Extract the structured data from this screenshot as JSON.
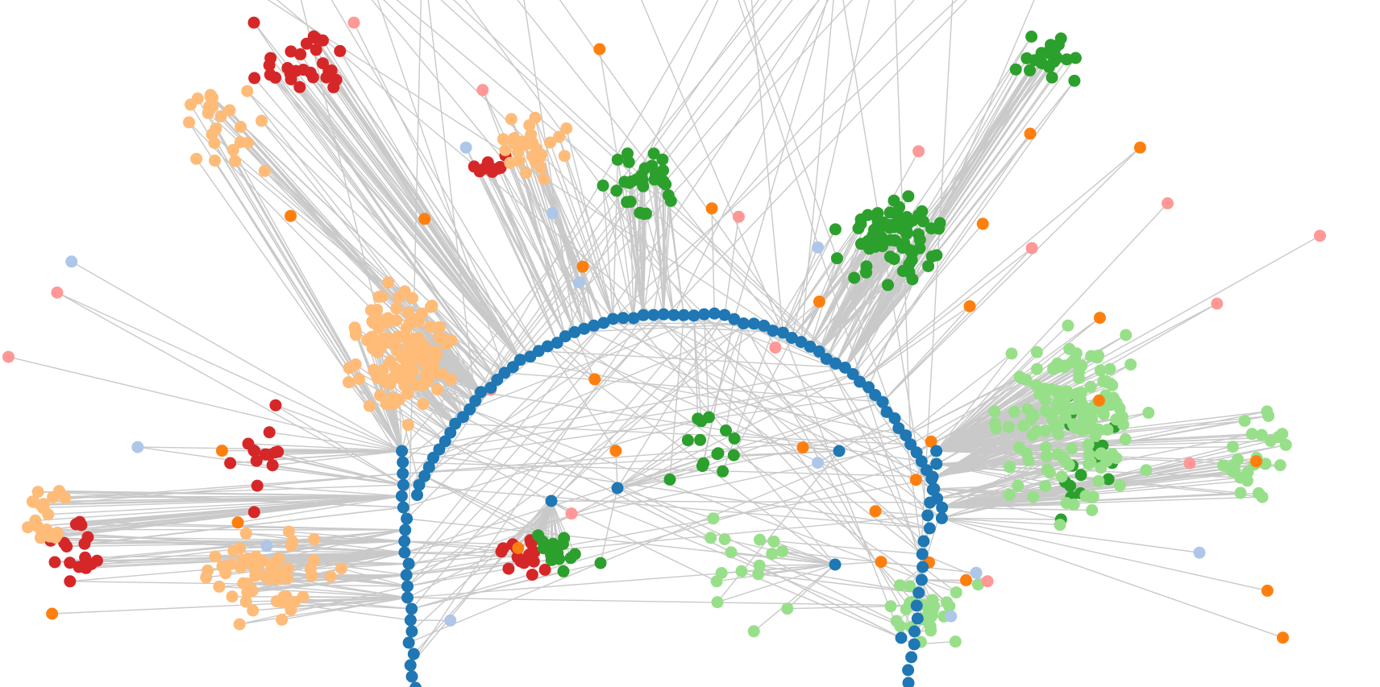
{
  "diagram": {
    "type": "radial-network",
    "labels_visible": false,
    "edge_color": "#c9c9c9",
    "palette": {
      "dark_blue": "#1f77b4",
      "light_blue": "#aec7e8",
      "orange": "#ff7f0e",
      "light_orange": "#ffbb78",
      "dark_green": "#2ca02c",
      "light_green": "#98df8a",
      "red": "#d62728",
      "pink": "#ff9896"
    },
    "groups": [
      {
        "name": "core-ring",
        "color": "#1f77b4"
      },
      {
        "name": "red-cluster",
        "color": "#d62728"
      },
      {
        "name": "light-orange-cluster",
        "color": "#ffbb78"
      },
      {
        "name": "dark-green-cluster",
        "color": "#2ca02c"
      },
      {
        "name": "light-green-cluster",
        "color": "#98df8a"
      },
      {
        "name": "orange-nodes",
        "color": "#ff7f0e"
      },
      {
        "name": "pink-nodes",
        "color": "#ff9896"
      },
      {
        "name": "light-blue-nodes",
        "color": "#aec7e8"
      }
    ]
  }
}
